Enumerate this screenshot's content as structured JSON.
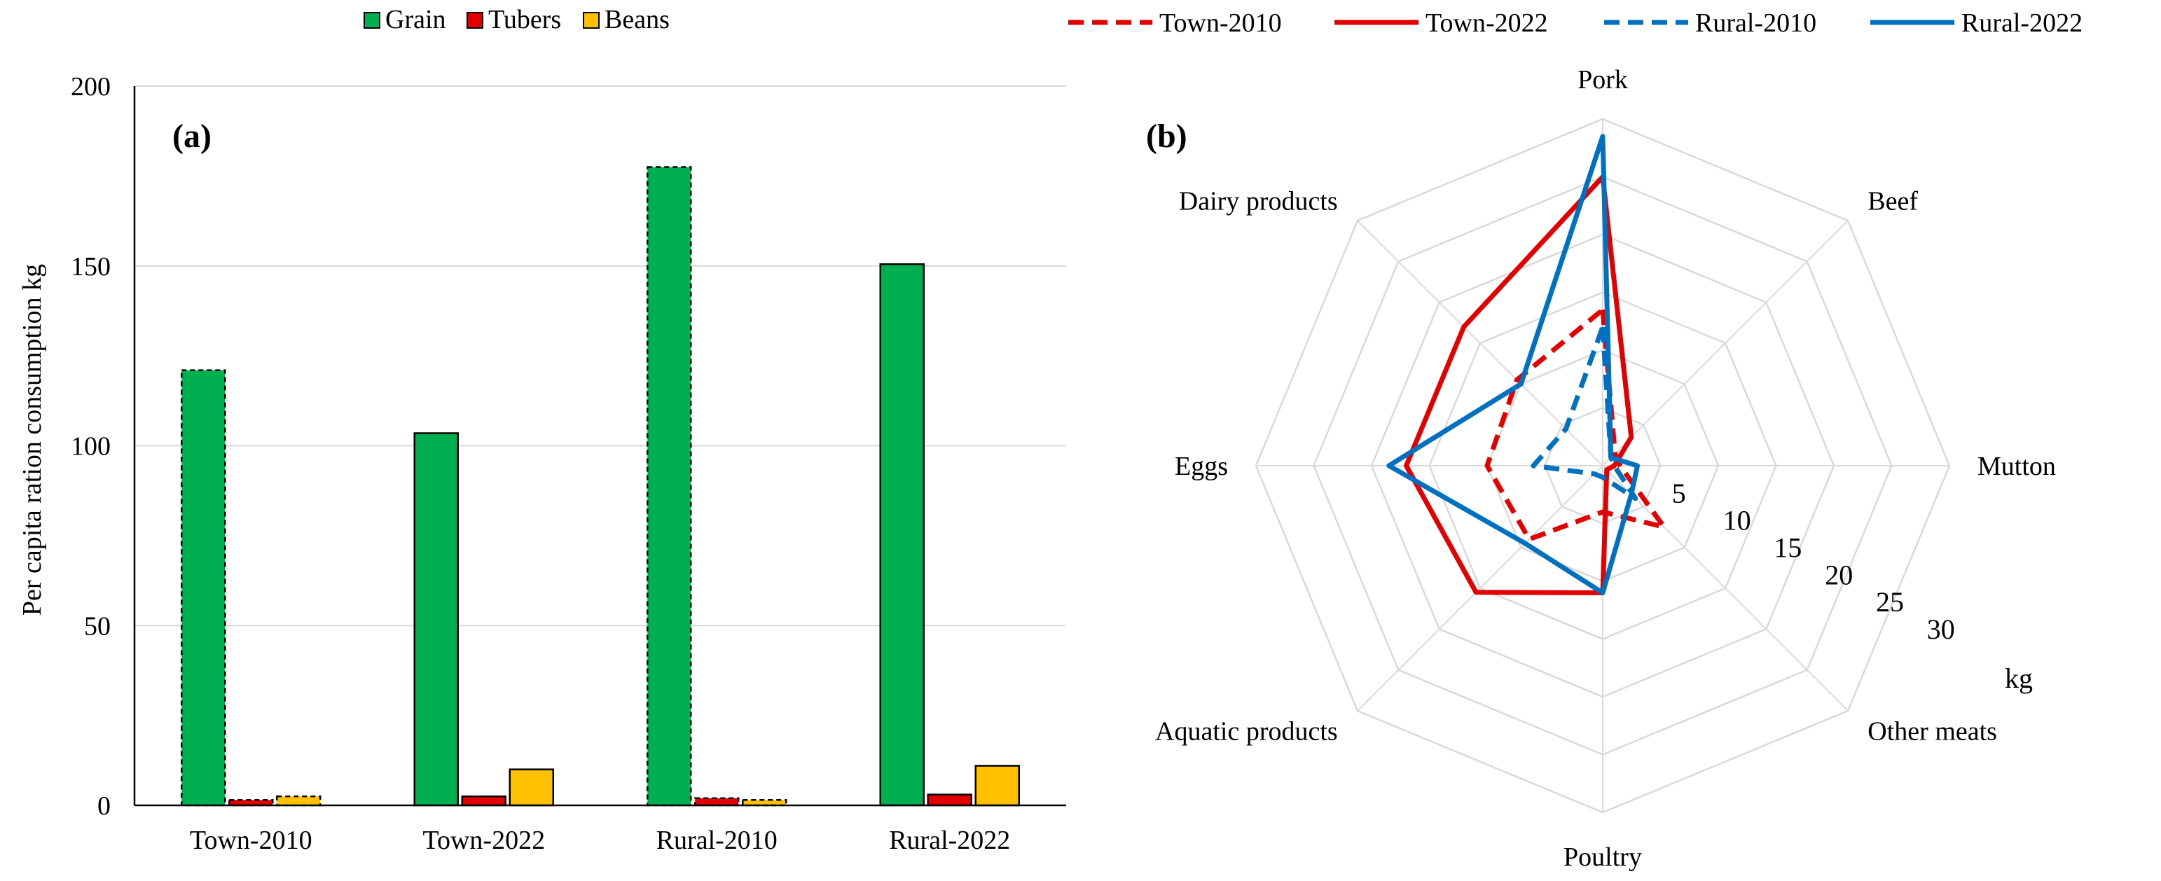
{
  "chart_data": [
    {
      "panel": "(a)",
      "type": "bar",
      "title": "",
      "ylabel": "Per capita ration  consumption kg",
      "xlabel": "",
      "ylim": [
        0,
        200
      ],
      "yticks": [
        "0",
        "50",
        "100",
        "150",
        "200"
      ],
      "categories": [
        "Town-2010",
        "Town-2022",
        "Rural-2010",
        "Rural-2022"
      ],
      "dashed_categories": [
        "Town-2010",
        "Rural-2010"
      ],
      "series": [
        {
          "name": "Grain",
          "color": "#00B050",
          "values": [
            121,
            103.5,
            177.5,
            150.5
          ]
        },
        {
          "name": "Tubers",
          "color": "#E30000",
          "values": [
            1.5,
            2.5,
            2,
            3
          ]
        },
        {
          "name": "Beans",
          "color": "#FFC000",
          "values": [
            2.5,
            10,
            1.5,
            11
          ]
        }
      ],
      "grid": true,
      "legend": "top"
    },
    {
      "panel": "(b)",
      "type": "radar",
      "title": "",
      "unit": "kg",
      "rmax": 30,
      "ring_labels": [
        "5",
        "10",
        "15",
        "20",
        "25",
        "30"
      ],
      "axes": [
        "Pork",
        "Beef",
        "Mutton",
        "Other meats",
        "Poultry",
        "Aquatic products",
        "Eggs",
        "Dairy products"
      ],
      "series": [
        {
          "name": "Town-2010",
          "color": "#E30000",
          "dashed": true,
          "values": [
            13.5,
            1.5,
            1.5,
            7.5,
            4,
            9,
            10,
            10.5
          ]
        },
        {
          "name": "Town-2022",
          "color": "#E30000",
          "dashed": false,
          "values": [
            25,
            3.5,
            1,
            0.5,
            11,
            15.5,
            17,
            17
          ]
        },
        {
          "name": "Rural-2010",
          "color": "#0070C0",
          "dashed": true,
          "values": [
            12,
            1,
            1,
            4,
            1,
            1,
            6,
            4.5
          ]
        },
        {
          "name": "Rural-2022",
          "color": "#0070C0",
          "dashed": false,
          "values": [
            28.5,
            1,
            3,
            3.5,
            11,
            9.5,
            18.5,
            10
          ]
        }
      ],
      "grid": true,
      "legend": "top"
    }
  ]
}
